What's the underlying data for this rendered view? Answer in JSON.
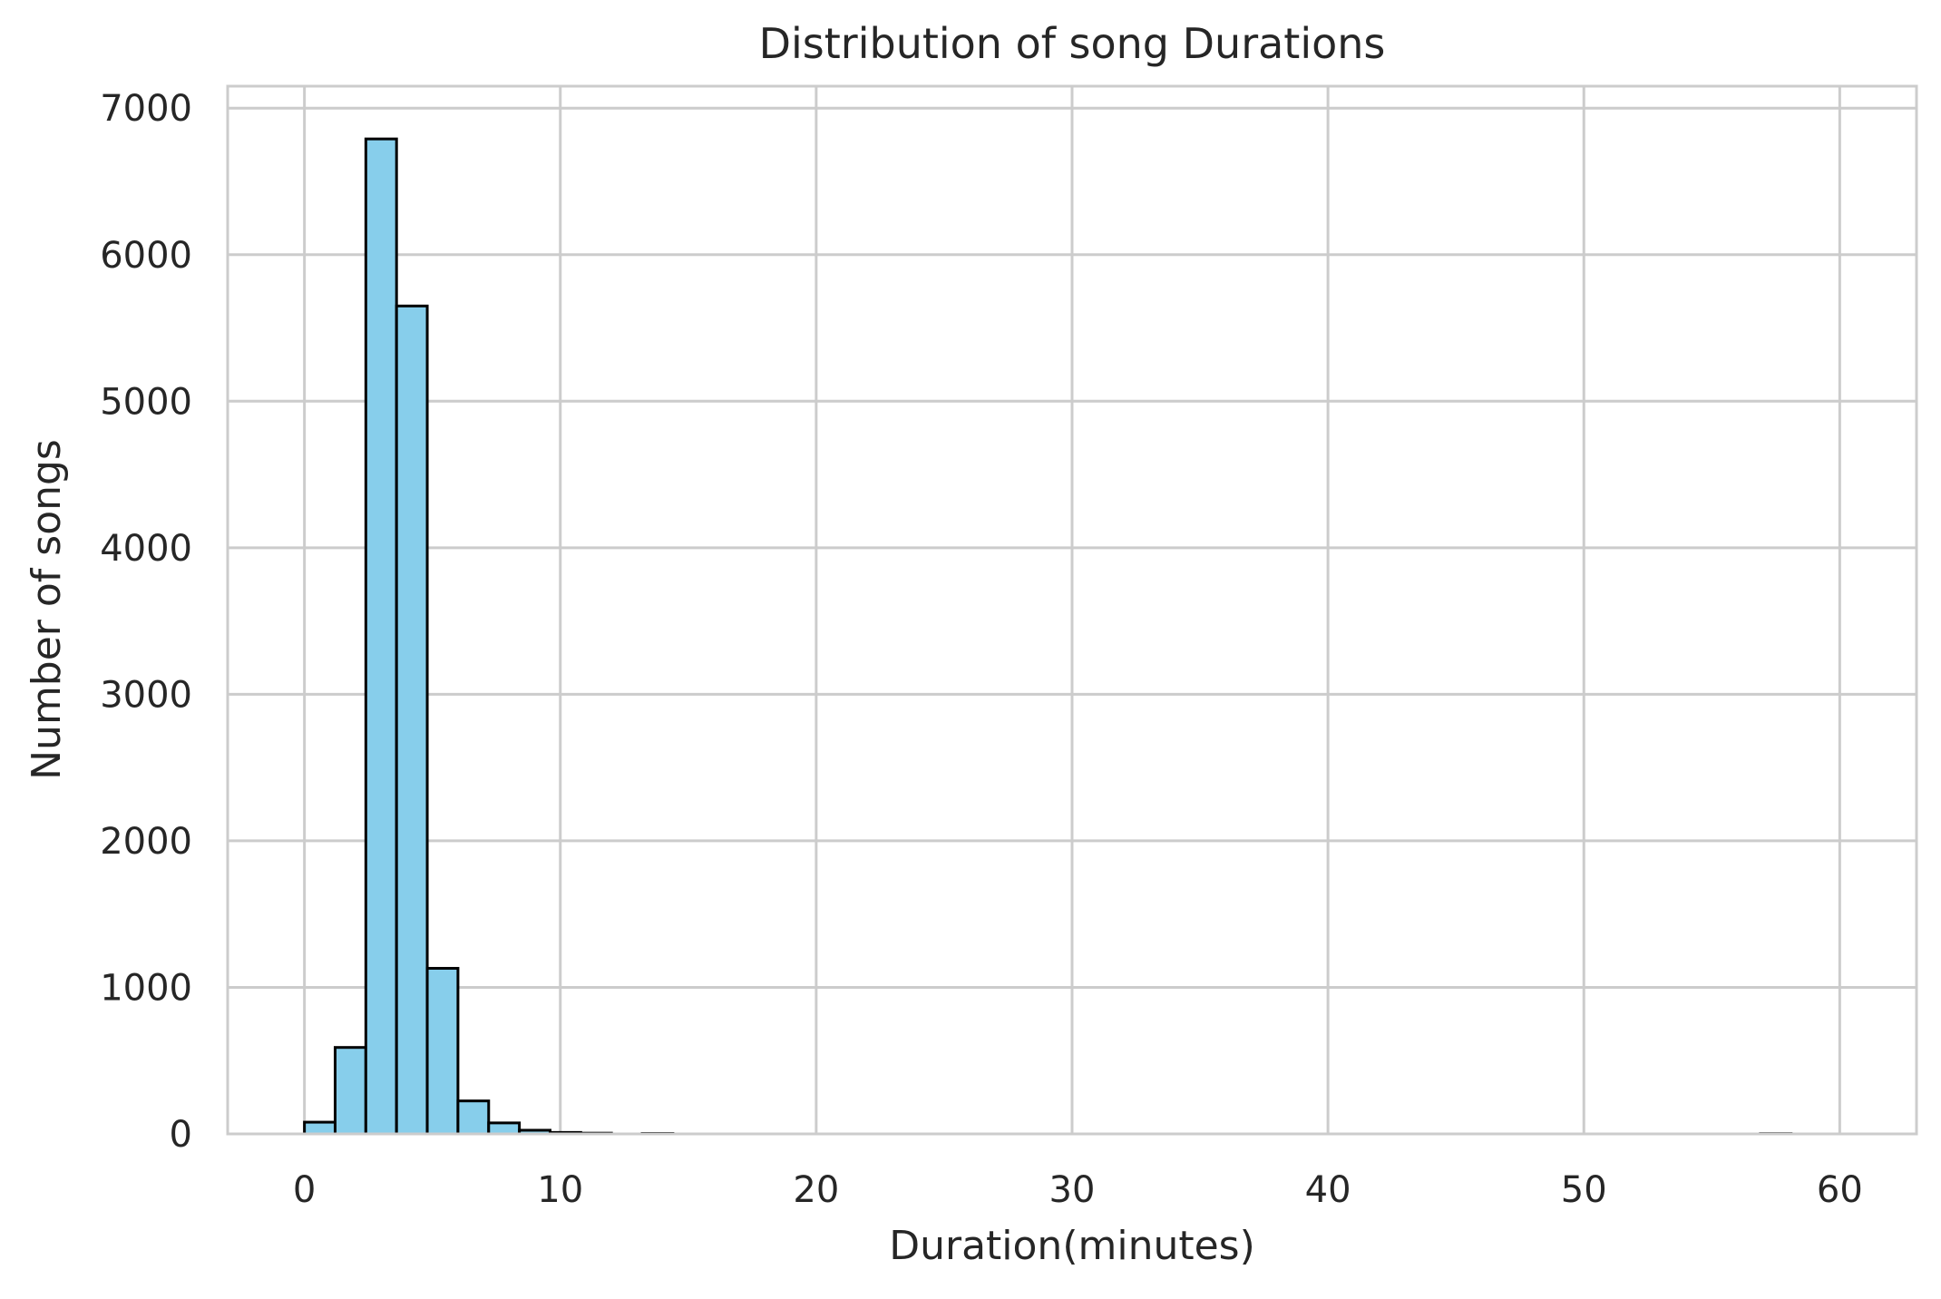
{
  "chart_data": {
    "type": "bar",
    "title": "Distribution of song Durations",
    "xlabel": "Duration(minutes)",
    "ylabel": "Number of songs",
    "xlim": [
      -3,
      63
    ],
    "ylim": [
      0,
      7150
    ],
    "xticks": [
      "0",
      "10",
      "20",
      "30",
      "40",
      "50",
      "60"
    ],
    "yticks": [
      "0",
      "1000",
      "2000",
      "3000",
      "4000",
      "5000",
      "6000",
      "7000"
    ],
    "bins": [
      {
        "x0": 0.0,
        "x1": 1.2,
        "count": 80
      },
      {
        "x0": 1.2,
        "x1": 2.4,
        "count": 590
      },
      {
        "x0": 2.4,
        "x1": 3.6,
        "count": 6790
      },
      {
        "x0": 3.6,
        "x1": 4.8,
        "count": 5650
      },
      {
        "x0": 4.8,
        "x1": 6.0,
        "count": 1130
      },
      {
        "x0": 6.0,
        "x1": 7.2,
        "count": 225
      },
      {
        "x0": 7.2,
        "x1": 8.4,
        "count": 75
      },
      {
        "x0": 8.4,
        "x1": 9.6,
        "count": 25
      },
      {
        "x0": 9.6,
        "x1": 10.8,
        "count": 10
      },
      {
        "x0": 10.8,
        "x1": 12.0,
        "count": 5
      },
      {
        "x0": 13.2,
        "x1": 14.4,
        "count": 3
      },
      {
        "x0": 56.9,
        "x1": 58.1,
        "count": 2
      }
    ],
    "bar_color": "#87ceeb",
    "edge_color": "#000000",
    "grid": true,
    "grid_color": "#cccccc",
    "spine_color": "#cccccc"
  }
}
